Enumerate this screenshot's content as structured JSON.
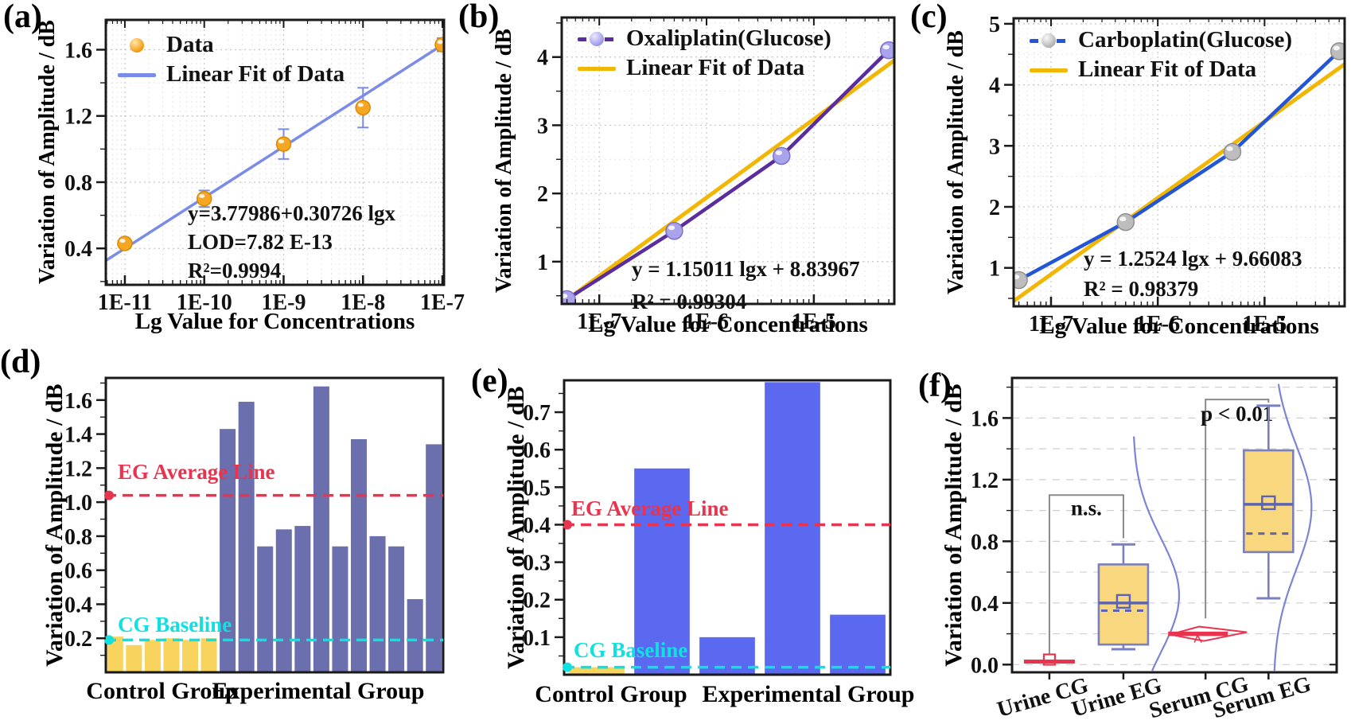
{
  "figure": {
    "title": "",
    "panel_count": 6
  },
  "panels": {
    "a": {
      "label": "(a)",
      "y_axis_label": "Variation of Amplitude / dB",
      "x_axis_label": "Lg Value for Concentrations",
      "legend": [
        {
          "label": "Data",
          "glyph": "sphere",
          "color": "#F5A623"
        },
        {
          "label": "Linear Fit of Data",
          "glyph": "line",
          "color": "#7B8BE8"
        }
      ],
      "annotation_lines": [
        "y=3.77986+0.30726 lgx",
        "LOD=7.82 E-13",
        "R²=0.9994"
      ],
      "chart_data": {
        "type": "scatter",
        "x_scale": "log",
        "xlim_exp": [
          -11.24,
          -6.98
        ],
        "ylim": [
          0.18,
          1.78
        ],
        "y_minor": 0.2,
        "x_ticks": [
          {
            "exp": -11,
            "label": "1E-11"
          },
          {
            "exp": -10,
            "label": "1E-10"
          },
          {
            "exp": -9,
            "label": "1E-9"
          },
          {
            "exp": -8,
            "label": "1E-8"
          },
          {
            "exp": -7,
            "label": "1E-7"
          }
        ],
        "y_ticks": [
          {
            "v": 0.4,
            "label": "0.4"
          },
          {
            "v": 0.8,
            "label": "0.8"
          },
          {
            "v": 1.2,
            "label": "1.2"
          },
          {
            "v": 1.6,
            "label": "1.6"
          }
        ],
        "points": {
          "x_labels": [
            "1E-11",
            "1E-10",
            "1E-9",
            "1E-8",
            "1E-7"
          ],
          "x_exp": [
            -11,
            -10,
            -9,
            -8,
            -7
          ],
          "y": [
            0.43,
            0.7,
            1.03,
            1.25,
            1.63
          ],
          "yerr": [
            0.03,
            0.05,
            0.09,
            0.12,
            0.04
          ]
        },
        "marker_color": "#F5A623",
        "marker_stroke": "#D98C00",
        "marker_r": 9,
        "errorbar_color": "#7B8BE8",
        "fit": {
          "slope": 0.30726,
          "intercept": 3.77986,
          "color": "#7B8BE8",
          "width": 3.5
        }
      }
    },
    "b": {
      "label": "(b)",
      "y_axis_label": "Variation of Amplitude / dB",
      "x_axis_label": "Lg Value for Concentrations",
      "legend": [
        {
          "label": "Oxaliplatin(Glucose)",
          "glyph": "dashed-line-sphere",
          "color": "#5A2D9E"
        },
        {
          "label": "Linear Fit of Data",
          "glyph": "line",
          "color": "#F2B705"
        }
      ],
      "annotation_lines": [
        "y = 1.15011 lgx + 8.83967",
        "R² = 0.99304"
      ],
      "chart_data": {
        "type": "scatter",
        "x_scale": "log",
        "xlim_exp": [
          -7.35,
          -4.25
        ],
        "ylim": [
          0.38,
          4.58
        ],
        "y_minor": 0.5,
        "x_ticks": [
          {
            "exp": -7,
            "label": "1E-7"
          },
          {
            "exp": -6,
            "label": "1E-6"
          },
          {
            "exp": -5,
            "label": "1E-5"
          }
        ],
        "y_ticks": [
          {
            "v": 1,
            "label": "1"
          },
          {
            "v": 2,
            "label": "2"
          },
          {
            "v": 3,
            "label": "3"
          },
          {
            "v": 4,
            "label": "4"
          }
        ],
        "points": {
          "x_labels": [
            "5E-8",
            "5E-7",
            "5E-6",
            "5E-5"
          ],
          "x_exp": [
            -7.301,
            -6.301,
            -5.301,
            -4.301
          ],
          "y": [
            0.45,
            1.45,
            2.55,
            4.1
          ]
        },
        "line_color": "#5A2D9E",
        "marker_color": "#A9A3EC",
        "marker_stroke": "#7a72cc",
        "marker_r": 10.5,
        "fit": {
          "slope": 1.15011,
          "intercept": 8.83967,
          "color": "#F2B705",
          "width": 5
        }
      }
    },
    "c": {
      "label": "(c)",
      "y_axis_label": "Variation of Amplitude / dB",
      "x_axis_label": "Lg Value for Concentrations",
      "legend": [
        {
          "label": "Carboplatin(Glucose)",
          "glyph": "dashed-line-sphere",
          "color": "#2256D6"
        },
        {
          "label": "Linear Fit of Data",
          "glyph": "line",
          "color": "#F2B705"
        }
      ],
      "annotation_lines": [
        "y = 1.2524 lgx + 9.66083",
        "R² = 0.98379"
      ],
      "chart_data": {
        "type": "scatter",
        "x_scale": "log",
        "xlim_exp": [
          -7.35,
          -4.25
        ],
        "ylim": [
          0.37,
          5.09
        ],
        "y_minor": 0.5,
        "x_ticks": [
          {
            "exp": -7,
            "label": "1E-7"
          },
          {
            "exp": -6,
            "label": "1E-6"
          },
          {
            "exp": -5,
            "label": "1E-5"
          }
        ],
        "y_ticks": [
          {
            "v": 1,
            "label": "1"
          },
          {
            "v": 2,
            "label": "2"
          },
          {
            "v": 3,
            "label": "3"
          },
          {
            "v": 4,
            "label": "4"
          },
          {
            "v": 5,
            "label": "5"
          }
        ],
        "points": {
          "x_labels": [
            "5E-8",
            "5E-7",
            "5E-6",
            "5E-5"
          ],
          "x_exp": [
            -7.301,
            -6.301,
            -5.301,
            -4.301
          ],
          "y": [
            0.8,
            1.75,
            2.9,
            4.55
          ]
        },
        "line_color": "#2256D6",
        "marker_color": "#BDBDBD",
        "marker_stroke": "#8F8F8F",
        "marker_r": 10.5,
        "fit": {
          "slope": 1.2524,
          "intercept": 9.66083,
          "color": "#F2B705",
          "width": 5
        }
      }
    },
    "d": {
      "label": "(d)",
      "y_axis_label": "Variation of Amplitude / dB",
      "x_group_labels": [
        "Control Group",
        "Experimental Group"
      ],
      "chart_data": {
        "type": "bar",
        "ylim": [
          0,
          1.73
        ],
        "y_minor": 0.1,
        "bar_frac": 0.85,
        "y_ticks": [
          {
            "v": 0.2,
            "label": "0.2"
          },
          {
            "v": 0.4,
            "label": "0.4"
          },
          {
            "v": 0.6,
            "label": "0.6"
          },
          {
            "v": 0.8,
            "label": "0.8"
          },
          {
            "v": 1.0,
            "label": "1.0"
          },
          {
            "v": 1.2,
            "label": "1.2"
          },
          {
            "v": 1.4,
            "label": "1.4"
          },
          {
            "v": 1.6,
            "label": "1.6"
          }
        ],
        "bars": [
          {
            "v": 0.21,
            "g": "cg"
          },
          {
            "v": 0.16,
            "g": "cg"
          },
          {
            "v": 0.19,
            "g": "cg"
          },
          {
            "v": 0.2,
            "g": "cg"
          },
          {
            "v": 0.19,
            "g": "cg"
          },
          {
            "v": 0.2,
            "g": "cg"
          },
          {
            "v": 1.43,
            "g": "eg"
          },
          {
            "v": 1.59,
            "g": "eg"
          },
          {
            "v": 0.74,
            "g": "eg"
          },
          {
            "v": 0.84,
            "g": "eg"
          },
          {
            "v": 0.86,
            "g": "eg"
          },
          {
            "v": 1.68,
            "g": "eg"
          },
          {
            "v": 0.74,
            "g": "eg"
          },
          {
            "v": 1.37,
            "g": "eg"
          },
          {
            "v": 0.8,
            "g": "eg"
          },
          {
            "v": 0.74,
            "g": "eg"
          },
          {
            "v": 0.43,
            "g": "eg"
          },
          {
            "v": 1.34,
            "g": "eg"
          }
        ],
        "colors": {
          "cg": "#F8D35E",
          "eg": "#6B6FAD"
        },
        "reference_lines": [
          {
            "value": 1.04,
            "label": "EG Average Line",
            "color": "#E8344E"
          },
          {
            "value": 0.19,
            "label": "CG Baseline",
            "color": "#10E0E0"
          }
        ]
      }
    },
    "e": {
      "label": "(e)",
      "y_axis_label": "Variation of Amplitude / dB",
      "x_group_labels": [
        "Control Group",
        "Experimental Group"
      ],
      "chart_data": {
        "type": "bar",
        "ylim": [
          0,
          0.785
        ],
        "y_minor": 0.05,
        "bar_frac": 0.85,
        "y_ticks": [
          {
            "v": 0.1,
            "label": "0.1"
          },
          {
            "v": 0.2,
            "label": "0.2"
          },
          {
            "v": 0.3,
            "label": "0.3"
          },
          {
            "v": 0.4,
            "label": "0.4"
          },
          {
            "v": 0.5,
            "label": "0.5"
          },
          {
            "v": 0.6,
            "label": "0.6"
          },
          {
            "v": 0.7,
            "label": "0.7"
          }
        ],
        "bars": [
          {
            "v": 0.02,
            "g": "cg"
          },
          {
            "v": 0.55,
            "g": "eg"
          },
          {
            "v": 0.1,
            "g": "eg"
          },
          {
            "v": 0.78,
            "g": "eg"
          },
          {
            "v": 0.16,
            "g": "eg"
          }
        ],
        "colors": {
          "cg": "#F8D35E",
          "eg": "#5B68F0"
        },
        "reference_lines": [
          {
            "value": 0.4,
            "label": "EG Average Line",
            "color": "#E8344E"
          },
          {
            "value": 0.02,
            "label": "CG Baseline",
            "color": "#10E0E0"
          }
        ]
      }
    },
    "f": {
      "label": "(f)",
      "y_axis_label": "Variation of Amplitude / dB",
      "chart_data": {
        "type": "box",
        "ylim": [
          -0.05,
          1.86
        ],
        "y_minor": 0.2,
        "y_ticks": [
          {
            "v": 0.0,
            "label": "0.0"
          },
          {
            "v": 0.4,
            "label": "0.4"
          },
          {
            "v": 0.8,
            "label": "0.8"
          },
          {
            "v": 1.2,
            "label": "1.2"
          },
          {
            "v": 1.6,
            "label": "1.6"
          }
        ],
        "categories": [
          "Urine CG",
          "Urine EG",
          "Serum CG",
          "Serum EG"
        ],
        "center_fracs": [
          0.115,
          0.343,
          0.596,
          0.79
        ],
        "items": [
          {
            "cat": "Urine CG",
            "type": "flat",
            "value": 0.02,
            "mean": 0.03
          },
          {
            "cat": "Urine EG",
            "type": "box",
            "lo": 0.1,
            "q1": 0.13,
            "median": 0.4,
            "mean": 0.41,
            "alt": 0.35,
            "q3": 0.65,
            "hi": 0.78,
            "curve": {
              "mu": 0.45,
              "sigma": 0.37,
              "off": 12,
              "amp": 58,
              "range": [
                -0.04,
                1.5
              ]
            }
          },
          {
            "cat": "Serum CG",
            "type": "violin",
            "value": 0.2
          },
          {
            "cat": "Serum EG",
            "type": "box",
            "lo": 0.43,
            "q1": 0.73,
            "median": 1.04,
            "mean": 1.05,
            "alt": 0.85,
            "q3": 1.39,
            "hi": 1.68,
            "curve": {
              "mu": 1.02,
              "sigma": 0.4,
              "off": 6,
              "amp": 48,
              "range": [
                -0.04,
                1.84
              ]
            }
          }
        ],
        "significance": [
          {
            "label": "n.s.",
            "a": 0,
            "b": 1,
            "y": 1.1,
            "a_drop": 0.07,
            "b_drop": 0.82,
            "label_y": 0.97
          },
          {
            "label": "p < 0.01",
            "a": 2,
            "b": 3,
            "y": 1.72,
            "a_drop": 0.3,
            "b_drop": 1.7,
            "label_y": 1.58
          }
        ],
        "styles": {
          "box_fill": "#F9D77E",
          "box_stroke": "#7A7FBF",
          "median_color": "#5C63B0",
          "curve_color": "#7B84D6",
          "red": "#E8344E",
          "bracket": "#8a8a8a"
        }
      }
    }
  }
}
